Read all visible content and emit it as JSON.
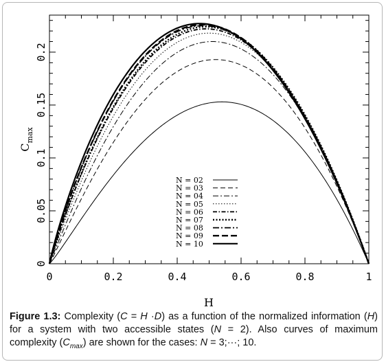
{
  "chart_data": {
    "type": "line",
    "xlabel": "H",
    "ylabel": "C",
    "ylabel_sub": "max",
    "xlim": [
      0,
      1
    ],
    "ylim": [
      0,
      0.235
    ],
    "x_ticks": [
      {
        "value": 0,
        "label": "0"
      },
      {
        "value": 0.2,
        "label": "0.2"
      },
      {
        "value": 0.4,
        "label": "0.4"
      },
      {
        "value": 0.6,
        "label": "0.6"
      },
      {
        "value": 0.8,
        "label": "0.8"
      },
      {
        "value": 1,
        "label": "1"
      }
    ],
    "y_ticks": [
      {
        "value": 0,
        "label": "0"
      },
      {
        "value": 0.05,
        "label": "0.05"
      },
      {
        "value": 0.1,
        "label": "0.1"
      },
      {
        "value": 0.15,
        "label": "0.15"
      },
      {
        "value": 0.2,
        "label": "0.2"
      }
    ],
    "grid": false,
    "legend_position": "center-bottom",
    "series": [
      {
        "name": "N = 02",
        "peak_x": 0.54,
        "peak_y": 0.153,
        "dash": "",
        "width": 1.0
      },
      {
        "name": "N = 03",
        "peak_x": 0.52,
        "peak_y": 0.193,
        "dash": "7,4",
        "width": 1.0
      },
      {
        "name": "N = 04",
        "peak_x": 0.51,
        "peak_y": 0.21,
        "dash": "8,3,2,3",
        "width": 1.0
      },
      {
        "name": "N = 05",
        "peak_x": 0.5,
        "peak_y": 0.218,
        "dash": "1.5,2.5",
        "width": 1.0
      },
      {
        "name": "N = 06",
        "peak_x": 0.49,
        "peak_y": 0.222,
        "dash": "6,2.5,1.5,2.5",
        "width": 1.8
      },
      {
        "name": "N = 07",
        "peak_x": 0.49,
        "peak_y": 0.224,
        "dash": "2,2.5",
        "width": 2.4
      },
      {
        "name": "N = 08",
        "peak_x": 0.48,
        "peak_y": 0.225,
        "dash": "9,3,2,3",
        "width": 1.8
      },
      {
        "name": "N = 09",
        "peak_x": 0.48,
        "peak_y": 0.226,
        "dash": "9,4",
        "width": 2.4
      },
      {
        "name": "N = 10",
        "peak_x": 0.47,
        "peak_y": 0.227,
        "dash": "",
        "width": 2.2
      }
    ]
  },
  "caption": {
    "label": "Figure 1.3:",
    "t1": " Complexity (",
    "v1": "C",
    "t2": " = ",
    "v2": "H",
    "t3": " ·",
    "v3": "D",
    "t4": ") as a function of the normalized information (",
    "v4": "H",
    "t5": ") for a system with two accessible states (",
    "v5": "N",
    "t6": " = 2). Also curves of maximum complexity (",
    "v6": "C",
    "sub": "max",
    "t7": ") are shown for the cases: ",
    "v7": "N",
    "t8": " = 3;···; 10."
  }
}
